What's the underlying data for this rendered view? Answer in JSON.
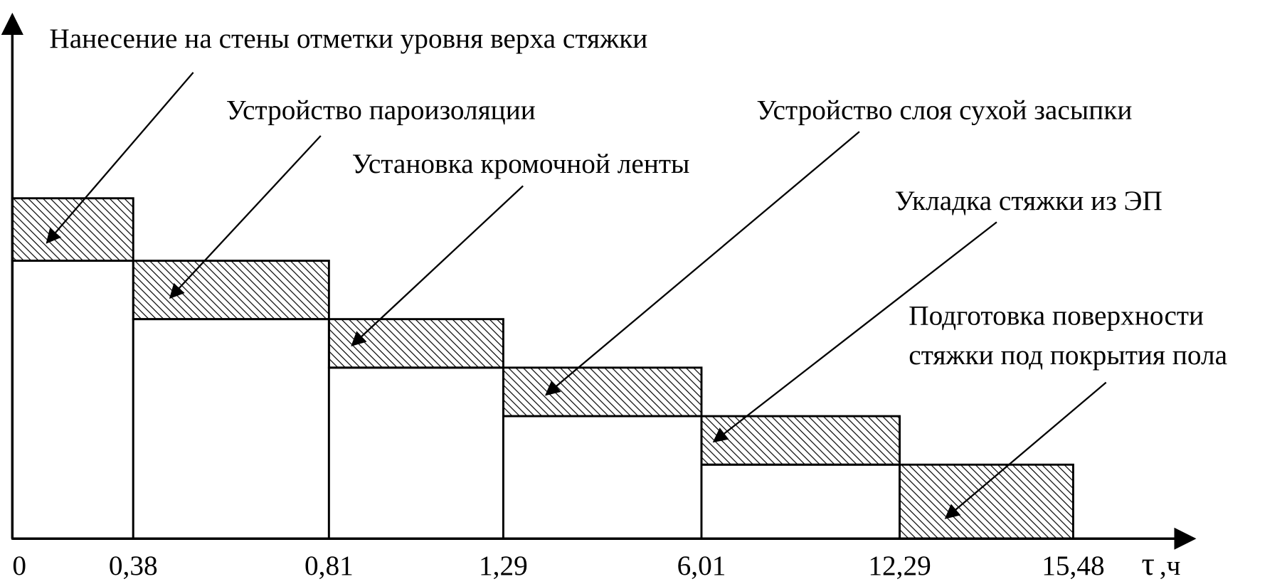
{
  "activities": [
    {
      "lines": [
        "Нанесение на стены отметки уровня верха стяжки"
      ]
    },
    {
      "lines": [
        "Устройство пароизоляции"
      ]
    },
    {
      "lines": [
        "Установка кромочной ленты"
      ]
    },
    {
      "lines": [
        "Устройство слоя сухой засыпки"
      ]
    },
    {
      "lines": [
        "Укладка стяжки из ЭП"
      ]
    },
    {
      "lines": [
        "Подготовка поверхности",
        "стяжки под покрытия пола"
      ]
    }
  ],
  "axis": {
    "ticks": [
      "0",
      "0,38",
      "0,81",
      "1,29",
      "6,01",
      "12,29",
      "15,48"
    ],
    "symbol": "τ",
    "unit": ",ч"
  }
}
